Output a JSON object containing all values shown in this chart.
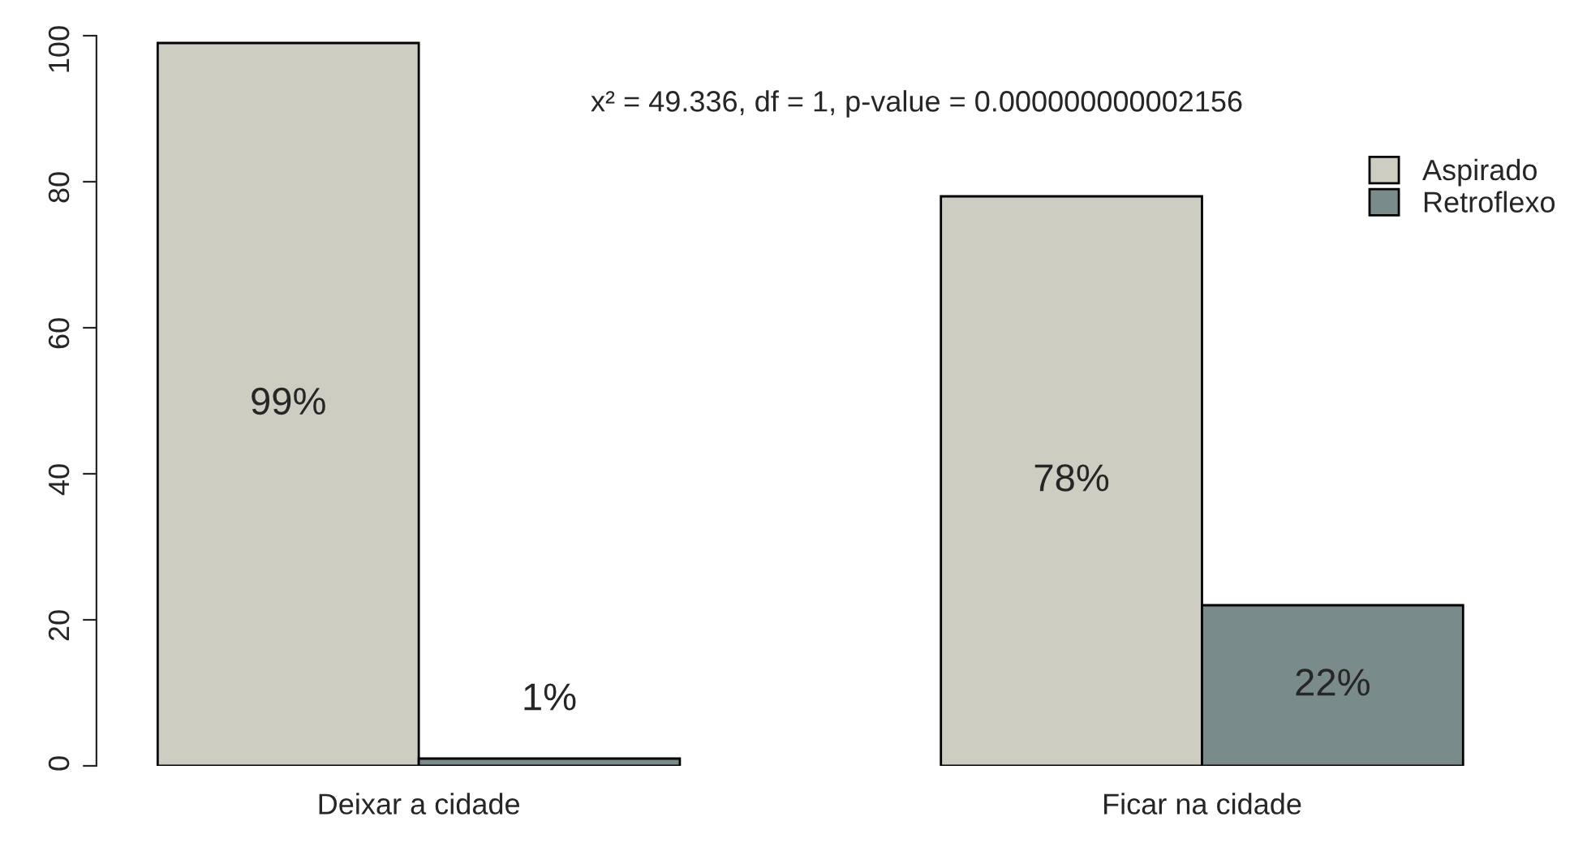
{
  "chart_data": {
    "type": "bar",
    "categories": [
      "Deixar a cidade",
      "Ficar na cidade"
    ],
    "series": [
      {
        "name": "Aspirado",
        "color": "#cdcdc1",
        "values": [
          99,
          78
        ],
        "value_labels": [
          "99%",
          "78%"
        ]
      },
      {
        "name": "Retroflexo",
        "color": "#7a8b8b",
        "values": [
          1,
          22
        ],
        "value_labels": [
          "1%",
          "22%"
        ]
      }
    ],
    "ylim": [
      0,
      100
    ],
    "yticks": [
      0,
      20,
      40,
      60,
      80,
      100
    ],
    "grid": false,
    "legend": "top right",
    "annotations": [
      "x² = 49.336, df = 1, p-value = 0.000000000002156"
    ]
  }
}
